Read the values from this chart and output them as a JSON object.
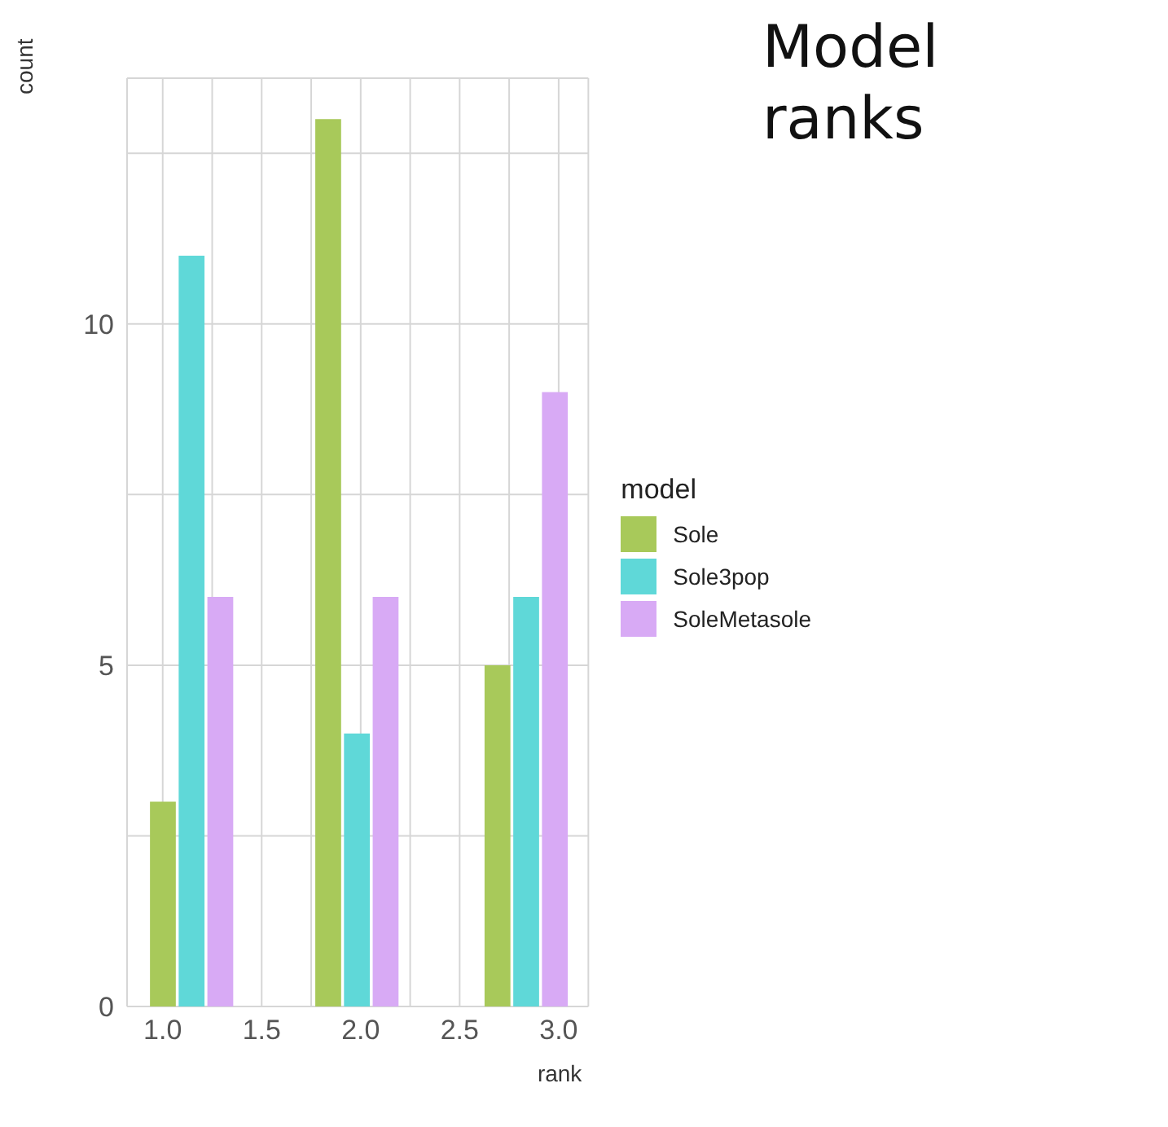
{
  "chart_data": {
    "type": "bar",
    "title": "Model ranks",
    "xlabel": "rank",
    "ylabel": "count",
    "legend_title": "model",
    "series": [
      {
        "name": "Sole",
        "color": "#a8c95a",
        "x": [
          1.0,
          1.835,
          2.69
        ],
        "values": [
          3,
          13,
          5
        ]
      },
      {
        "name": "Sole3pop",
        "color": "#5fd8d8",
        "x": [
          1.145,
          1.98,
          2.835
        ],
        "values": [
          11,
          4,
          6
        ]
      },
      {
        "name": "SoleMetasole",
        "color": "#d8aaf5",
        "x": [
          1.29,
          2.125,
          2.98
        ],
        "values": [
          6,
          6,
          9
        ]
      }
    ],
    "xlim": [
      0.82,
      3.15
    ],
    "xticks": [
      {
        "value": 1,
        "label": "1.0"
      },
      {
        "value": 1.25,
        "label": null
      },
      1.5,
      {
        "value": 1.75,
        "label": null
      },
      {
        "value": 2,
        "label": "2.0"
      },
      {
        "value": 2.25,
        "label": null
      },
      2.5,
      {
        "value": 2.75,
        "label": null
      },
      {
        "value": 3,
        "label": "3.0"
      }
    ],
    "ylim": [
      0,
      13.6
    ],
    "yticks": [
      0,
      {
        "value": 2.5,
        "label": null
      },
      5,
      {
        "value": 7.5,
        "label": null
      },
      10,
      {
        "value": 12.5,
        "label": null
      }
    ],
    "grid": true,
    "legend": "right"
  }
}
